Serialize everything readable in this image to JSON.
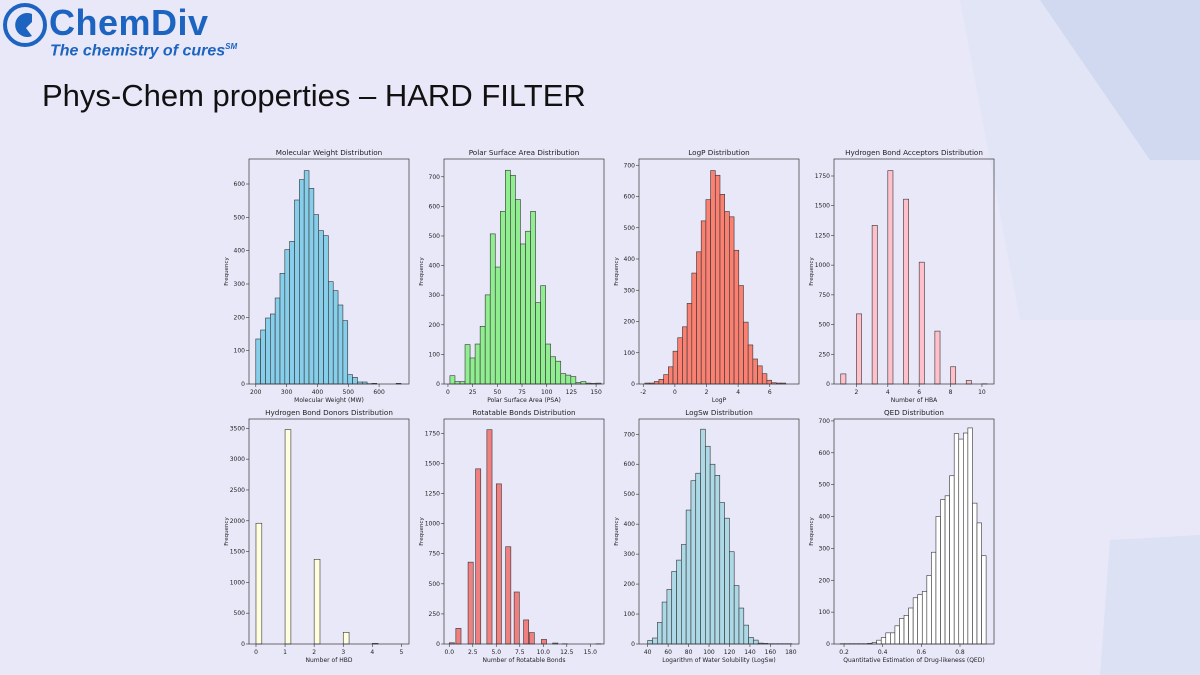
{
  "logo": {
    "name": "ChemDiv",
    "tagline": "The chemistry of cures",
    "mark": "SM"
  },
  "slide_title": "Phys-Chem properties – HARD FILTER",
  "colors": {
    "background": "#e9e8f9",
    "brand": "#1c64c0",
    "edge": "#333333"
  },
  "chart_data": [
    {
      "type": "bar",
      "title": "Molecular Weight Distribution",
      "xlabel": "Molecular Weight (MW)",
      "ylabel": "Frequency",
      "color": "#87ceeb",
      "xlim": [
        178,
        697
      ],
      "ylim": [
        0,
        675
      ],
      "xticks": [
        200,
        300,
        400,
        500,
        600
      ],
      "yticks": [
        0,
        100,
        200,
        300,
        400,
        500,
        600
      ],
      "bin_start": 200,
      "bin_width": 15.7,
      "values": [
        135,
        162,
        198,
        210,
        258,
        332,
        403,
        428,
        552,
        613,
        640,
        587,
        508,
        460,
        445,
        307,
        280,
        237,
        190,
        28,
        20,
        6,
        6,
        1,
        2,
        0,
        0,
        0,
        0,
        2
      ]
    },
    {
      "type": "bar",
      "title": "Polar Surface Area Distribution",
      "xlabel": "Polar Surface Area (PSA)",
      "ylabel": "Frequency",
      "color": "#90ee90",
      "xlim": [
        -4,
        158
      ],
      "ylim": [
        0,
        760
      ],
      "xticks": [
        0,
        25,
        50,
        75,
        100,
        125,
        150
      ],
      "yticks": [
        0,
        100,
        200,
        300,
        400,
        500,
        600,
        700
      ],
      "bin_start": 2,
      "bin_width": 5.1,
      "values": [
        28,
        8,
        8,
        133,
        88,
        135,
        195,
        301,
        507,
        395,
        583,
        722,
        705,
        623,
        473,
        516,
        583,
        275,
        332,
        135,
        92,
        77,
        35,
        30,
        25,
        5,
        8,
        3,
        2,
        3
      ]
    },
    {
      "type": "bar",
      "title": "LogP Distribution",
      "xlabel": "LogP",
      "ylabel": "Frequency",
      "color": "#fa8072",
      "xlim": [
        -2.27,
        7.85
      ],
      "ylim": [
        0,
        720
      ],
      "xticks": [
        -2,
        0,
        2,
        4,
        6
      ],
      "yticks": [
        0,
        100,
        200,
        300,
        400,
        500,
        600,
        700
      ],
      "bin_start": -1.9,
      "bin_width": 0.297,
      "values": [
        3,
        3,
        8,
        15,
        30,
        55,
        105,
        148,
        183,
        258,
        355,
        423,
        522,
        590,
        683,
        668,
        607,
        552,
        535,
        428,
        315,
        198,
        125,
        80,
        58,
        33,
        12,
        4,
        3,
        3
      ]
    },
    {
      "type": "bar",
      "title": "Hydrogen Bond Acceptors Distribution",
      "xlabel": "Number of HBA",
      "ylabel": "Frequency",
      "color": "#ffc0cb",
      "xlim": [
        0.57,
        10.77
      ],
      "ylim": [
        0,
        1893
      ],
      "xticks": [
        2,
        4,
        6,
        8,
        10
      ],
      "yticks": [
        0,
        250,
        500,
        750,
        1000,
        1250,
        1500,
        1750
      ],
      "bin_width": 0.33,
      "x": [
        1,
        2,
        3,
        4,
        5,
        6,
        7,
        8,
        9,
        10
      ],
      "values": [
        85,
        590,
        1335,
        1795,
        1555,
        1025,
        445,
        145,
        30,
        2
      ]
    },
    {
      "type": "bar",
      "title": "Hydrogen Bond Donors Distribution",
      "xlabel": "Number of HBD",
      "ylabel": "Frequency",
      "color": "#ffffe0",
      "xlim": [
        -0.24,
        5.26
      ],
      "ylim": [
        0,
        3652
      ],
      "xticks": [
        0,
        1,
        2,
        3,
        4,
        5
      ],
      "yticks": [
        0,
        500,
        1000,
        1500,
        2000,
        2500,
        3000,
        3500
      ],
      "bin_width": 0.2,
      "x": [
        0,
        1,
        2,
        3,
        4,
        5
      ],
      "values": [
        1960,
        3480,
        1375,
        190,
        10,
        0
      ]
    },
    {
      "type": "bar",
      "title": "Rotatable Bonds Distribution",
      "xlabel": "Number of Rotatable Bonds",
      "ylabel": "Frequency",
      "color": "#f08080",
      "xlim": [
        -0.56,
        16.46
      ],
      "ylim": [
        0,
        1869
      ],
      "xticks": [
        0.0,
        2.5,
        5.0,
        7.5,
        10.0,
        12.5,
        15.0
      ],
      "yticks": [
        0,
        250,
        500,
        750,
        1000,
        1250,
        1500,
        1750
      ],
      "bin_width": 0.55,
      "x": [
        0,
        0.7,
        2.0,
        2.8,
        4.0,
        5.0,
        6.0,
        6.9,
        7.9,
        8.5,
        9.8,
        11,
        12,
        15.6
      ],
      "values": [
        10,
        130,
        680,
        1455,
        1780,
        1330,
        808,
        432,
        200,
        95,
        38,
        8,
        2,
        2
      ]
    },
    {
      "type": "bar",
      "title": "LogSw Distribution",
      "xlabel": "Logarithm of Water Solubility (LogSw)",
      "ylabel": "Frequency",
      "color": "#add8e6",
      "xlim": [
        31.5,
        188
      ],
      "ylim": [
        0,
        751
      ],
      "xticks": [
        40,
        60,
        80,
        100,
        120,
        140,
        160,
        180
      ],
      "yticks": [
        0,
        100,
        200,
        300,
        400,
        500,
        600,
        700
      ],
      "bin_start": 40,
      "bin_width": 4.7,
      "values": [
        12,
        20,
        72,
        140,
        182,
        242,
        280,
        332,
        447,
        545,
        570,
        717,
        660,
        600,
        563,
        472,
        420,
        308,
        195,
        120,
        63,
        22,
        13,
        3,
        2,
        1,
        1,
        1,
        1,
        1
      ]
    },
    {
      "type": "bar",
      "title": "QED Distribution",
      "xlabel": "Quantitative Estimation of Drug-likeness (QED)",
      "ylabel": "Frequency",
      "color": "#ffffff",
      "xlim": [
        0.148,
        0.976
      ],
      "ylim": [
        0,
        706
      ],
      "xticks": [
        0.2,
        0.4,
        0.6,
        0.8
      ],
      "yticks": [
        0,
        100,
        200,
        300,
        400,
        500,
        600,
        700
      ],
      "bin_start": 0.18,
      "bin_width": 0.0236,
      "values": [
        1,
        1,
        1,
        1,
        1,
        1,
        2,
        5,
        12,
        20,
        35,
        35,
        57,
        80,
        90,
        113,
        145,
        155,
        165,
        215,
        288,
        400,
        453,
        465,
        528,
        660,
        643,
        662,
        678,
        442,
        380,
        277
      ]
    }
  ]
}
